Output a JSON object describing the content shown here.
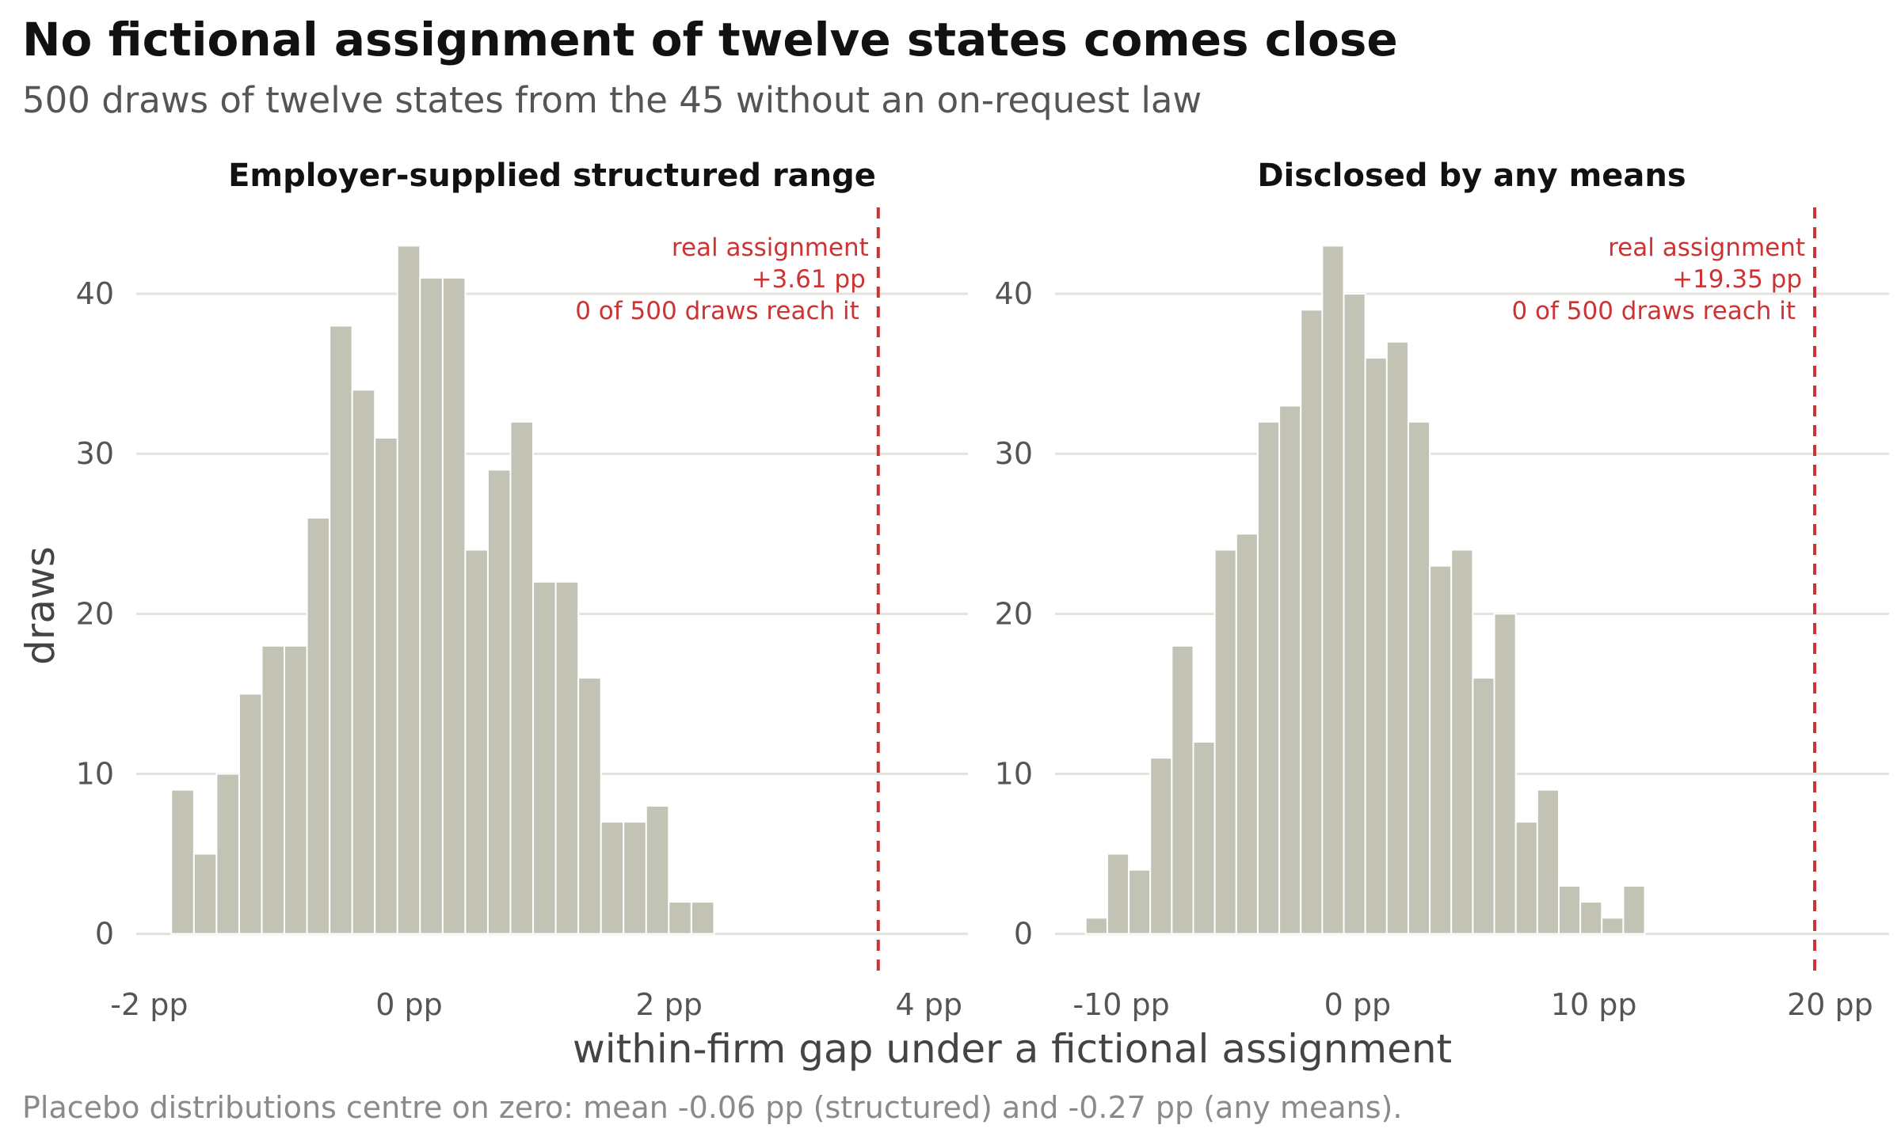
{
  "chart": {
    "title": "No fictional assignment of twelve states comes close",
    "subtitle": "500 draws of twelve states from the 45 without an on-request law",
    "xlabel": "within-firm gap under a fictional assignment",
    "ylabel": "draws",
    "caption": "Placebo distributions centre on zero: mean -0.06 pp (structured) and -0.27 pp (any means)."
  },
  "colors": {
    "bar": "#c2c2b5",
    "grid": "#e3e3dd",
    "reference": "#cc3333",
    "annotation": "#cc3333"
  },
  "chart_data": [
    {
      "type": "bar",
      "panel_title": "Employer-supplied structured range",
      "bin_width": 0.174,
      "bin_start": -1.83,
      "values": [
        9,
        5,
        10,
        15,
        18,
        18,
        26,
        38,
        34,
        31,
        43,
        41,
        41,
        24,
        29,
        32,
        22,
        22,
        16,
        7,
        7,
        8,
        2,
        2
      ],
      "xlim": [
        -2.1,
        4.3
      ],
      "ylim": [
        -2,
        45
      ],
      "x_ticks": [
        -2,
        0,
        2,
        4
      ],
      "x_tick_labels": [
        "-2 pp",
        "0 pp",
        "2 pp",
        "4 pp"
      ],
      "y_ticks": [
        0,
        10,
        20,
        30,
        40
      ],
      "y_tick_labels": [
        "0",
        "10",
        "20",
        "30",
        "40"
      ],
      "reference_value": 3.61,
      "annotation": [
        "real assignment",
        "+3.61 pp",
        "0 of 500 draws reach it"
      ]
    },
    {
      "type": "bar",
      "panel_title": "Disclosed by any means",
      "bin_width": 0.91,
      "bin_start": -11.5,
      "values": [
        1,
        5,
        4,
        11,
        18,
        12,
        24,
        25,
        32,
        33,
        39,
        43,
        40,
        36,
        37,
        32,
        23,
        24,
        16,
        20,
        7,
        9,
        3,
        2,
        1,
        3
      ],
      "xlim": [
        -12.8,
        22.5
      ],
      "ylim": [
        -2,
        45
      ],
      "x_ticks": [
        -10,
        0,
        10,
        20
      ],
      "x_tick_labels": [
        "-10 pp",
        "0 pp",
        "10 pp",
        "20 pp"
      ],
      "y_ticks": [
        0,
        10,
        20,
        30,
        40
      ],
      "y_tick_labels": [
        "0",
        "10",
        "20",
        "30",
        "40"
      ],
      "reference_value": 19.35,
      "annotation": [
        "real assignment",
        "+19.35 pp",
        "0 of 500 draws reach it"
      ]
    }
  ]
}
